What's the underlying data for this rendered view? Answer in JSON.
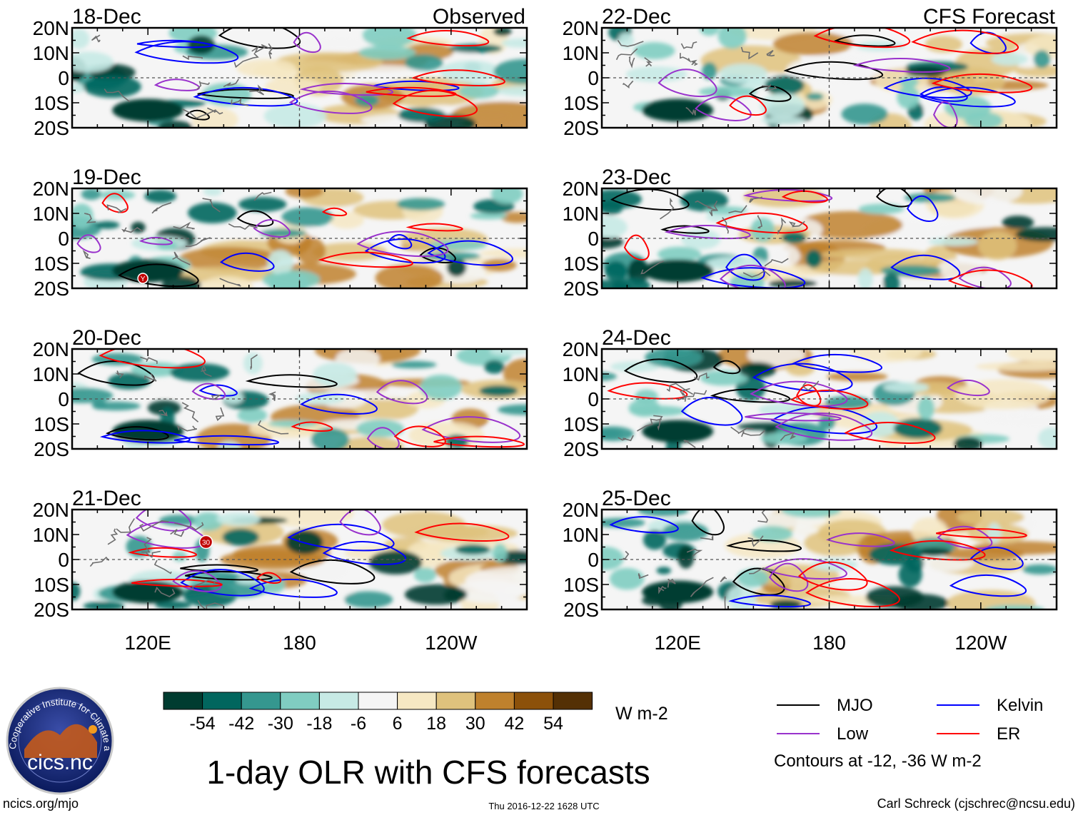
{
  "chart_data": {
    "type": "heatmap",
    "title": "1-day OLR with CFS forecasts",
    "units": "W m-2",
    "panels": [
      {
        "date": "18-Dec",
        "tag": "Observed"
      },
      {
        "date": "19-Dec",
        "tag": ""
      },
      {
        "date": "20-Dec",
        "tag": ""
      },
      {
        "date": "21-Dec",
        "tag": ""
      },
      {
        "date": "22-Dec",
        "tag": "CFS Forecast"
      },
      {
        "date": "23-Dec",
        "tag": ""
      },
      {
        "date": "24-Dec",
        "tag": ""
      },
      {
        "date": "25-Dec",
        "tag": ""
      }
    ],
    "lat_ticks": [
      "20N",
      "10N",
      "0",
      "10S",
      "20S"
    ],
    "lat_range": [
      -20,
      20
    ],
    "lon_range": [
      90,
      270
    ],
    "lon_ticks": [
      {
        "lon": 120,
        "label": "120E"
      },
      {
        "lon": 180,
        "label": "180"
      },
      {
        "lon": 240,
        "label": "120W"
      }
    ],
    "colorbar": {
      "labels": [
        "-54",
        "-42",
        "-30",
        "-18",
        "-6",
        "6",
        "18",
        "30",
        "42",
        "54"
      ],
      "colors": [
        "#003c30",
        "#01665e",
        "#35978f",
        "#80cdc1",
        "#c7eae5",
        "#f5f5f5",
        "#f6e8c3",
        "#dfc27d",
        "#bf812d",
        "#8c510a",
        "#543005"
      ]
    },
    "contours": {
      "levels_text": "Contours at -12, -36 W m-2",
      "legend": [
        {
          "name": "MJO",
          "color": "#000000"
        },
        {
          "name": "Kelvin",
          "color": "#0000ff"
        },
        {
          "name": "Low",
          "color": "#9932cc"
        },
        {
          "name": "ER",
          "color": "#ff0000"
        }
      ]
    },
    "storm_markers": [
      "Y",
      "30"
    ]
  },
  "logo": {
    "text": "cics.nc",
    "ring_text": "Cooperative Institute for Climate and Satellites"
  },
  "footer": {
    "left": "ncics.org/mjo",
    "center": "Thu 2016-12-22 1628 UTC",
    "right": "Carl Schreck (cjschrec@ncsu.edu)"
  }
}
